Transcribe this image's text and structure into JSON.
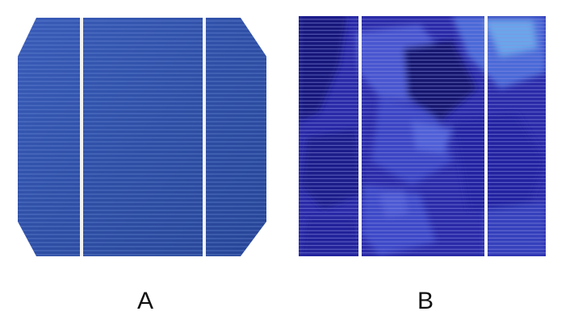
{
  "panels": [
    {
      "label": "A",
      "cell_type": "monocrystalline",
      "colors": {
        "base": "#2f4fa6",
        "light": "#3d62c0",
        "dark": "#23418f",
        "finger": "#6f8fd8",
        "busbar": "#f2f2f2"
      }
    },
    {
      "label": "B",
      "cell_type": "polycrystalline",
      "colors": {
        "base": "#2a2aa8",
        "dark": "#141468",
        "light": "#4a5ad8",
        "highlight": "#5fa0e6",
        "finger": "#8a90e0",
        "busbar": "#f4f4f4"
      }
    }
  ]
}
